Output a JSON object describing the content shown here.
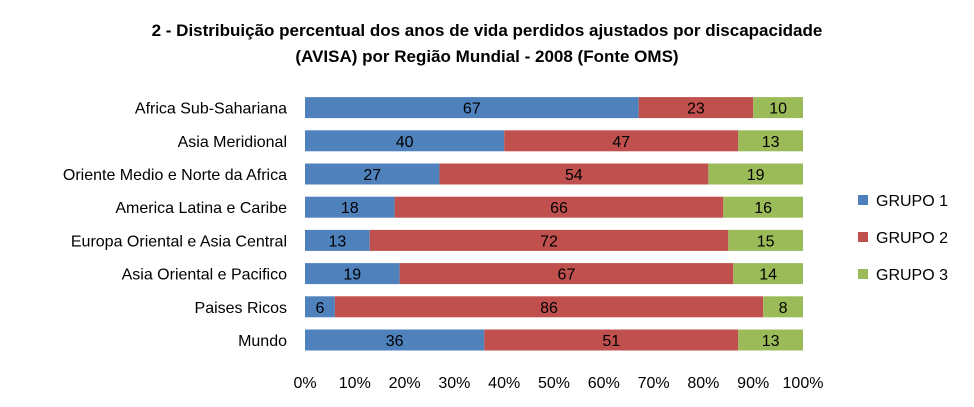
{
  "chart_data": {
    "type": "bar",
    "orientation": "horizontal",
    "stacked": "percent",
    "title": "2 - Distribuição percentual dos anos de vida perdidos ajustados por discapacidade (AVISA) por Região Mundial - 2008 (Fonte OMS)",
    "title_lines": [
      "2 - Distribuição percentual dos anos de vida perdidos ajustados por discapacidade",
      "(AVISA) por Região Mundial - 2008 (Fonte OMS)"
    ],
    "categories": [
      "Africa Sub-Sahariana",
      "Asia Meridional",
      "Oriente Medio e Norte da Africa",
      "America Latina e Caribe",
      "Europa Oriental e Asia Central",
      "Asia Oriental e Pacifico",
      "Paises Ricos",
      "Mundo"
    ],
    "series": [
      {
        "name": "GRUPO 1",
        "color": "#4F81BD",
        "values": [
          67,
          40,
          27,
          18,
          13,
          19,
          6,
          36
        ]
      },
      {
        "name": "GRUPO 2",
        "color": "#C0504D",
        "values": [
          23,
          47,
          54,
          66,
          72,
          67,
          86,
          51
        ]
      },
      {
        "name": "GRUPO 3",
        "color": "#9BBB59",
        "values": [
          10,
          13,
          19,
          16,
          15,
          14,
          8,
          13
        ]
      }
    ],
    "xlim": [
      0,
      100
    ],
    "x_ticks": [
      "0%",
      "10%",
      "20%",
      "30%",
      "40%",
      "50%",
      "60%",
      "70%",
      "80%",
      "90%",
      "100%"
    ],
    "xlabel": "",
    "ylabel": "",
    "grid": false,
    "legend_position": "right"
  }
}
